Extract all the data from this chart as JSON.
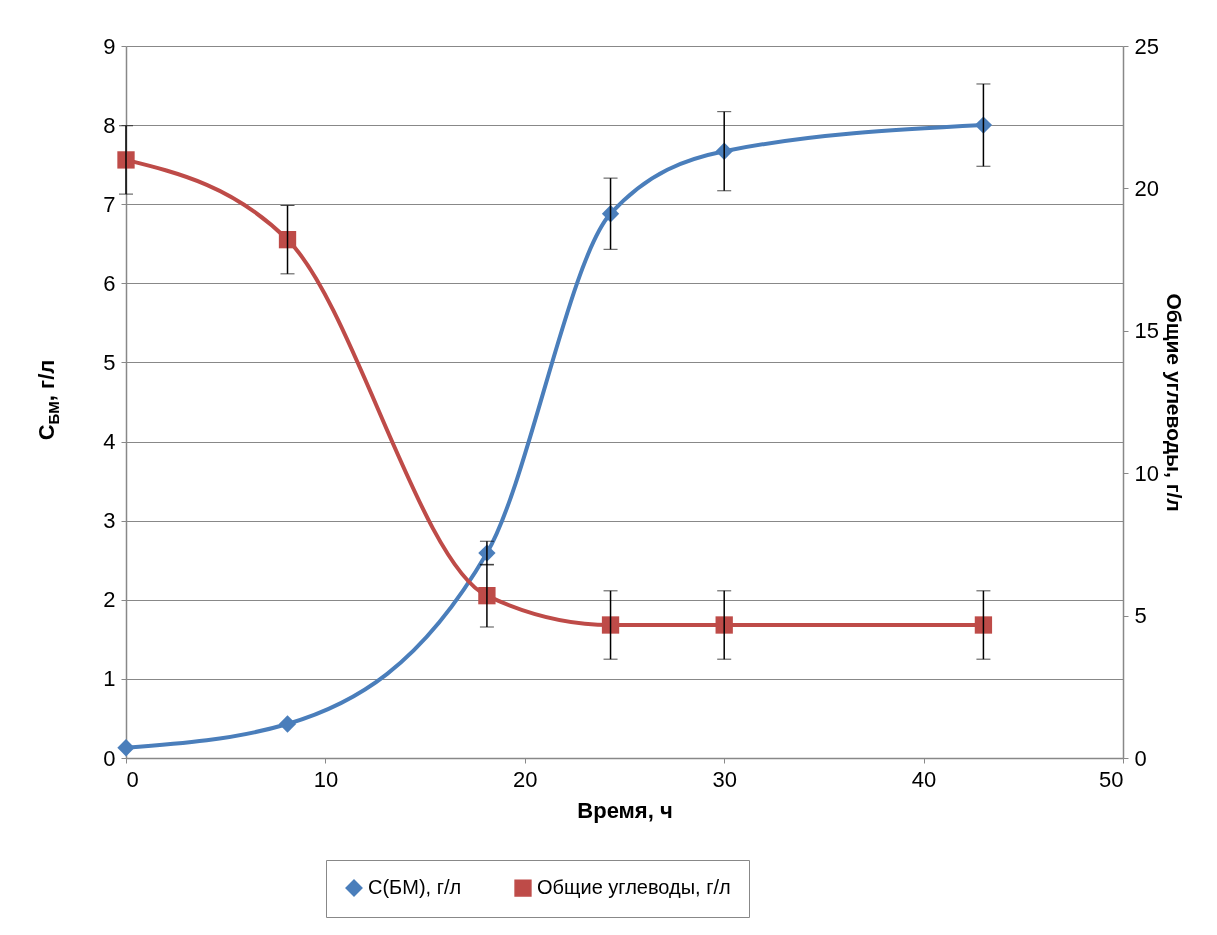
{
  "chart_data": {
    "type": "line",
    "xlabel": "Время, ч",
    "ylabel": "C$_{БМ}$, г/л",
    "y2label": "Общие углеводы, г/л",
    "x": [
      0,
      8.1,
      18.1,
      24.3,
      30,
      43
    ],
    "xlim": [
      0,
      50
    ],
    "xticks": [
      0,
      10,
      20,
      30,
      40,
      50
    ],
    "ylim": [
      0,
      9
    ],
    "yticks": [
      0,
      1,
      2,
      3,
      4,
      5,
      6,
      7,
      8,
      9
    ],
    "y2lim": [
      0,
      25
    ],
    "y2ticks": [
      0,
      5,
      10,
      15,
      20,
      25
    ],
    "grid": "y",
    "legend": "bottom",
    "series": [
      {
        "name": "С(БМ), г/л",
        "color": "#4a7ebb",
        "marker": "diamond",
        "values": [
          0.13,
          0.43,
          2.59,
          6.88,
          7.67,
          8.0
        ],
        "errors": [
          null,
          null,
          0.15,
          0.45,
          0.5,
          0.52
        ]
      },
      {
        "name": "Общие углеводы, г/л",
        "color": "#be4b48",
        "marker": "square",
        "axis": "y2",
        "values": [
          21.0,
          18.2,
          5.7,
          4.67,
          4.67,
          4.67
        ],
        "errors": [
          1.2,
          1.2,
          1.1,
          1.2,
          1.2,
          1.2
        ]
      }
    ]
  }
}
